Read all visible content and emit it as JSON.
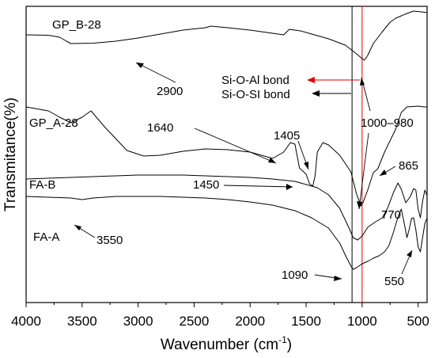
{
  "chart_data": {
    "type": "line",
    "xlabel": "Wavenumber (cm",
    "xlabel_superscript": "-1",
    "xlabel_suffix": ")",
    "ylabel": "Transmitance(%)",
    "xlim": [
      4000,
      420
    ],
    "x_reversed": true,
    "x_ticks": [
      4000,
      3500,
      3000,
      2500,
      2000,
      1500,
      1000,
      500
    ],
    "y_ticks_shown": false,
    "grid": false,
    "vertical_reference_lines": [
      {
        "x": 1090,
        "color": "#000000"
      },
      {
        "x": 1000,
        "color": "#e00000"
      }
    ],
    "series": [
      {
        "name": "GP_B-28",
        "color": "#000000",
        "points": [
          [
            4000,
            44
          ],
          [
            3800,
            44.5
          ],
          [
            3700,
            47
          ],
          [
            3640,
            52
          ],
          [
            3600,
            55
          ],
          [
            3400,
            54.5
          ],
          [
            3200,
            52
          ],
          [
            3000,
            48
          ],
          [
            2800,
            43
          ],
          [
            2600,
            38
          ],
          [
            2400,
            35
          ],
          [
            2350,
            33
          ],
          [
            2200,
            35
          ],
          [
            2000,
            38
          ],
          [
            1800,
            42
          ],
          [
            1700,
            44
          ],
          [
            1650,
            37
          ],
          [
            1550,
            39
          ],
          [
            1450,
            43
          ],
          [
            1300,
            49
          ],
          [
            1150,
            57
          ],
          [
            1050,
            68
          ],
          [
            1000,
            74
          ],
          [
            980,
            76
          ],
          [
            950,
            70
          ],
          [
            900,
            55
          ],
          [
            820,
            40
          ],
          [
            750,
            28
          ],
          [
            700,
            23
          ],
          [
            650,
            20
          ],
          [
            600,
            17
          ],
          [
            540,
            14
          ],
          [
            470,
            15
          ],
          [
            420,
            16
          ]
        ]
      },
      {
        "name": "GP_A-28",
        "color": "#000000",
        "points": [
          [
            4000,
            135
          ],
          [
            3800,
            140
          ],
          [
            3700,
            148
          ],
          [
            3600,
            155
          ],
          [
            3500,
            148
          ],
          [
            3420,
            140
          ],
          [
            3300,
            160
          ],
          [
            3100,
            190
          ],
          [
            2950,
            197
          ],
          [
            2800,
            196
          ],
          [
            2600,
            191
          ],
          [
            2400,
            188
          ],
          [
            2200,
            189
          ],
          [
            2000,
            192
          ],
          [
            1800,
            200
          ],
          [
            1700,
            192
          ],
          [
            1640,
            180
          ],
          [
            1600,
            182
          ],
          [
            1560,
            212
          ],
          [
            1500,
            220
          ],
          [
            1470,
            232
          ],
          [
            1440,
            235
          ],
          [
            1420,
            222
          ],
          [
            1400,
            192
          ],
          [
            1350,
            180
          ],
          [
            1300,
            183
          ],
          [
            1200,
            196
          ],
          [
            1100,
            217
          ],
          [
            1050,
            245
          ],
          [
            1010,
            260
          ],
          [
            990,
            255
          ],
          [
            950,
            240
          ],
          [
            900,
            218
          ],
          [
            860,
            213
          ],
          [
            800,
            192
          ],
          [
            700,
            163
          ],
          [
            650,
            142
          ],
          [
            600,
            135
          ],
          [
            500,
            134
          ],
          [
            450,
            135
          ],
          [
            420,
            135
          ]
        ]
      },
      {
        "name": "FA-B",
        "color": "#000000",
        "points": [
          [
            4000,
            226
          ],
          [
            3800,
            225
          ],
          [
            3600,
            224
          ],
          [
            3400,
            223
          ],
          [
            3200,
            222
          ],
          [
            3000,
            221
          ],
          [
            2800,
            221
          ],
          [
            2600,
            221
          ],
          [
            2400,
            222
          ],
          [
            2200,
            223
          ],
          [
            2000,
            224
          ],
          [
            1800,
            226
          ],
          [
            1600,
            229
          ],
          [
            1400,
            237
          ],
          [
            1300,
            246
          ],
          [
            1200,
            263
          ],
          [
            1120,
            287
          ],
          [
            1080,
            300
          ],
          [
            1040,
            303
          ],
          [
            1000,
            298
          ],
          [
            950,
            287
          ],
          [
            880,
            280
          ],
          [
            820,
            275
          ],
          [
            770,
            262
          ],
          [
            720,
            243
          ],
          [
            680,
            231
          ],
          [
            650,
            239
          ],
          [
            610,
            256
          ],
          [
            570,
            248
          ],
          [
            540,
            238
          ],
          [
            520,
            240
          ],
          [
            500,
            264
          ],
          [
            480,
            275
          ],
          [
            460,
            254
          ],
          [
            440,
            240
          ],
          [
            420,
            247
          ]
        ]
      },
      {
        "name": "FA-A",
        "color": "#000000",
        "points": [
          [
            4000,
            248
          ],
          [
            3800,
            249
          ],
          [
            3600,
            250
          ],
          [
            3500,
            252
          ],
          [
            3400,
            250
          ],
          [
            3200,
            248
          ],
          [
            3000,
            248
          ],
          [
            2800,
            248
          ],
          [
            2600,
            249
          ],
          [
            2400,
            250
          ],
          [
            2200,
            252
          ],
          [
            2000,
            255
          ],
          [
            1800,
            259
          ],
          [
            1600,
            266
          ],
          [
            1450,
            275
          ],
          [
            1300,
            288
          ],
          [
            1200,
            307
          ],
          [
            1150,
            322
          ],
          [
            1100,
            336
          ],
          [
            1080,
            340
          ],
          [
            1050,
            338
          ],
          [
            1000,
            333
          ],
          [
            950,
            330
          ],
          [
            900,
            326
          ],
          [
            850,
            323
          ],
          [
            800,
            318
          ],
          [
            760,
            310
          ],
          [
            720,
            293
          ],
          [
            680,
            274
          ],
          [
            650,
            264
          ],
          [
            620,
            285
          ],
          [
            600,
            300
          ],
          [
            580,
            290
          ],
          [
            560,
            276
          ],
          [
            540,
            275
          ],
          [
            520,
            290
          ],
          [
            500,
            312
          ],
          [
            480,
            318
          ],
          [
            460,
            300
          ],
          [
            440,
            282
          ],
          [
            420,
            275
          ]
        ]
      }
    ],
    "annotations": [
      {
        "text": "2900"
      },
      {
        "text": "Si-O-Al bond",
        "color": "#000000",
        "arrow_color": "#e00000"
      },
      {
        "text": "Si-O-SI bond",
        "color": "#000000",
        "arrow_color": "#000000"
      },
      {
        "text": "1000–980"
      },
      {
        "text": "1640"
      },
      {
        "text": "1405"
      },
      {
        "text": "1450"
      },
      {
        "text": "865"
      },
      {
        "text": "770"
      },
      {
        "text": "3550"
      },
      {
        "text": "1090"
      },
      {
        "text": "550"
      }
    ]
  }
}
